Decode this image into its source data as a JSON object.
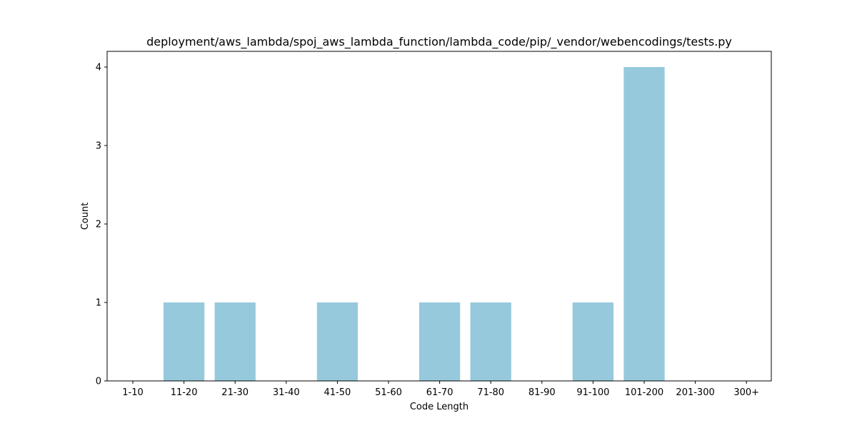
{
  "chart_data": {
    "type": "bar",
    "title": "deployment/aws_lambda/spoj_aws_lambda_function/lambda_code/pip/_vendor/webencodings/tests.py",
    "xlabel": "Code Length",
    "ylabel": "Count",
    "categories": [
      "1-10",
      "11-20",
      "21-30",
      "31-40",
      "41-50",
      "51-60",
      "61-70",
      "71-80",
      "81-90",
      "91-100",
      "101-200",
      "201-300",
      "300+"
    ],
    "values": [
      0,
      1,
      1,
      0,
      1,
      0,
      1,
      1,
      0,
      1,
      4,
      0,
      0
    ],
    "ylim": [
      0,
      4.2
    ],
    "yticks": [
      0,
      1,
      2,
      3,
      4
    ],
    "bar_color": "#96c9dc",
    "grid": false
  }
}
